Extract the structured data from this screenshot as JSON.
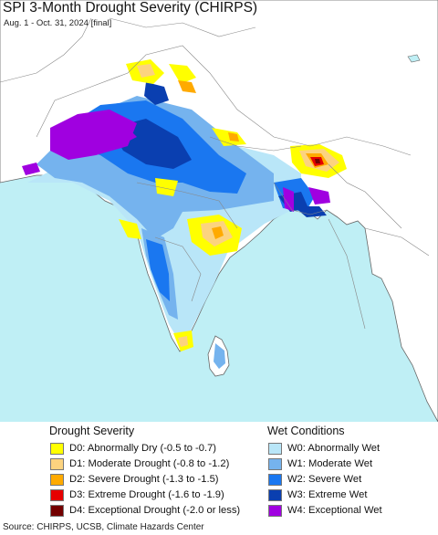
{
  "title": "SPI 3-Month Drought Severity (CHIRPS)",
  "subtitle": "Aug. 1 - Oct. 31, 2024 [final]",
  "legend": {
    "drought_heading": "Drought Severity",
    "wet_heading": "Wet Conditions",
    "drought": [
      {
        "label": "D0: Abnormally Dry (-0.5 to -0.7)",
        "color": "#ffff00"
      },
      {
        "label": "D1: Moderate Drought (-0.8 to -1.2)",
        "color": "#fcd37f"
      },
      {
        "label": "D2: Severe Drought (-1.3 to -1.5)",
        "color": "#ffaa00"
      },
      {
        "label": "D3: Extreme Drought (-1.6 to -1.9)",
        "color": "#e60000"
      },
      {
        "label": "D4: Exceptional Drought (-2.0 or less)",
        "color": "#730000"
      }
    ],
    "wet": [
      {
        "label": "W0: Abnormally Wet",
        "color": "#b9e6f8"
      },
      {
        "label": "W1: Moderate Wet",
        "color": "#75b3ee"
      },
      {
        "label": "W2: Severe Wet",
        "color": "#1a77f0"
      },
      {
        "label": "W3: Extreme Wet",
        "color": "#0a3fb0"
      },
      {
        "label": "W4: Exceptional Wet",
        "color": "#a000e0"
      }
    ]
  },
  "colors": {
    "ocean": "#bfeff5",
    "land": "#ffffff",
    "border": "#888888"
  },
  "source": "Source: CHIRPS, UCSB, Climate Hazards Center"
}
